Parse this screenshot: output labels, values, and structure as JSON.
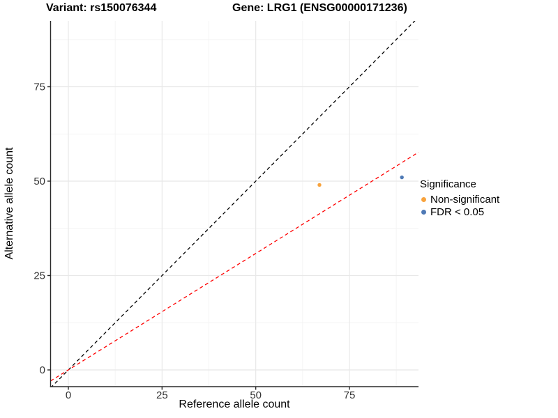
{
  "titles": {
    "left": "Variant: rs150076344",
    "right": "Gene: LRG1 (ENSG00000171236)"
  },
  "chart_data": {
    "type": "scatter",
    "xlabel": "Reference allele count",
    "ylabel": "Alternative allele count",
    "xlim": [
      -4.75,
      93.43
    ],
    "ylim": [
      -4.43,
      92.44
    ],
    "xticks": [
      0,
      25,
      50,
      75
    ],
    "yticks": [
      0,
      25,
      50,
      75
    ],
    "xticks_minor": [
      12.5,
      37.5,
      62.5,
      87.5
    ],
    "yticks_minor": [
      12.5,
      37.5,
      62.5,
      87.5
    ],
    "grid": true,
    "series": [
      {
        "name": "Non-significant",
        "color": "#F8A33D",
        "points": [
          {
            "x": 67,
            "y": 49
          }
        ]
      },
      {
        "name": "FDR < 0.05",
        "color": "#4E79B5",
        "points": [
          {
            "x": 89,
            "y": 51
          }
        ]
      }
    ],
    "lines": [
      {
        "name": "identity-line",
        "style": "dashed",
        "color": "#000000",
        "slope": 1,
        "intercept": 0
      },
      {
        "name": "fitted-ratio-line",
        "style": "dashed",
        "color": "#FF0000",
        "slope": 0.617,
        "intercept": 0
      }
    ],
    "legend": {
      "title": "Significance",
      "position": "right",
      "entries": [
        {
          "label": "Non-significant",
          "color": "#F8A33D"
        },
        {
          "label": "FDR < 0.05",
          "color": "#4E79B5"
        }
      ]
    },
    "colors": {
      "grid_major": "#e8e8e8",
      "grid_minor": "#f3f3f3",
      "axis_line": "#2a2a2a",
      "tick_label": "#333333"
    }
  }
}
